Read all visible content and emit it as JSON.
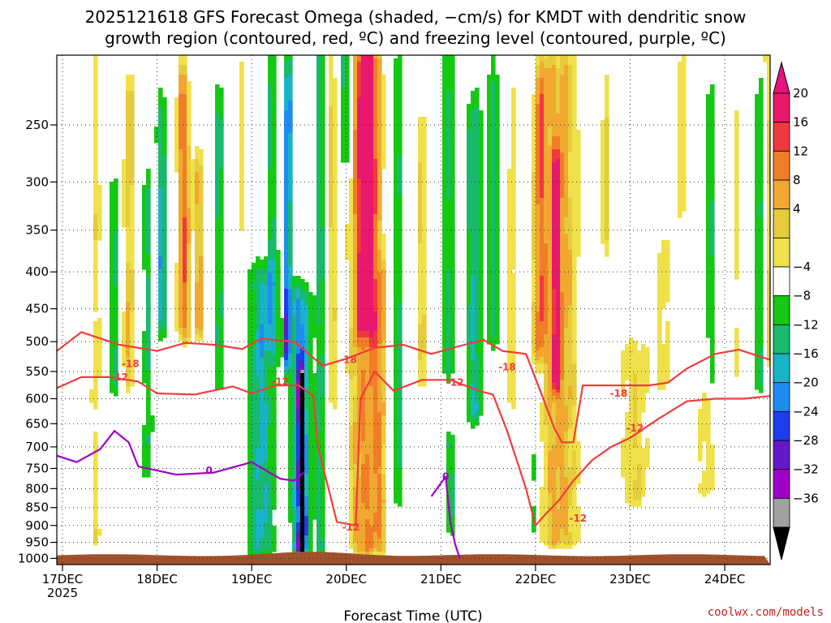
{
  "chart_data": {
    "type": "heatmap",
    "title_line1": "2025121618 GFS Forecast Omega (shaded, −cm/s) for KMDT with dendritic snow",
    "title_line2": "growth region (contoured, red, ºC) and freezing level (contoured, purple, ºC)",
    "xlabel": "Forecast Time (UTC)",
    "ylabel": "",
    "x_ticks": [
      {
        "label": "17DEC",
        "sub": "2025",
        "t": 0
      },
      {
        "label": "18DEC",
        "t": 1
      },
      {
        "label": "19DEC",
        "t": 2
      },
      {
        "label": "20DEC",
        "t": 3
      },
      {
        "label": "21DEC",
        "t": 4
      },
      {
        "label": "22DEC",
        "t": 5
      },
      {
        "label": "23DEC",
        "t": 6
      },
      {
        "label": "24DEC",
        "t": 7
      }
    ],
    "xlim_days": [
      -0.06,
      7.48
    ],
    "y_ticks": [
      250,
      300,
      350,
      400,
      450,
      500,
      550,
      600,
      650,
      700,
      750,
      800,
      850,
      900,
      950,
      1000
    ],
    "ylim_hPa": [
      200,
      1020
    ],
    "grid": true,
    "colorbar": {
      "labels": [
        "20",
        "16",
        "12",
        "8",
        "4",
        "−4",
        "−8",
        "−12",
        "−16",
        "−20",
        "−24",
        "−28",
        "−32",
        "−36"
      ],
      "top_arrow_color": "#e8127a",
      "bottom_arrow_color": "#000000",
      "colors": [
        "#e8186e",
        "#f0393c",
        "#f07e28",
        "#f0a830",
        "#e6cc3c",
        "#f0e14a",
        "#ffffff",
        "#14c814",
        "#19b96e",
        "#19b4c8",
        "#1e8cf0",
        "#1e3cf0",
        "#6419c8",
        "#a000c8",
        "#a0a0a0"
      ]
    },
    "omega_features": [
      {
        "t": 0.35,
        "p0": 220,
        "p1": 940,
        "w": 0.07,
        "v": 5
      },
      {
        "t": 0.7,
        "p0": 240,
        "p1": 560,
        "w": 0.06,
        "v": 8
      },
      {
        "t": 0.55,
        "p0": 320,
        "p1": 560,
        "w": 0.05,
        "v": -9
      },
      {
        "t": 0.9,
        "p0": 320,
        "p1": 750,
        "w": 0.05,
        "v": -8
      },
      {
        "t": 1.05,
        "p0": 260,
        "p1": 460,
        "w": 0.05,
        "v": -14
      },
      {
        "t": 1.28,
        "p0": 240,
        "p1": 470,
        "w": 0.07,
        "v": 14
      },
      {
        "t": 1.45,
        "p0": 300,
        "p1": 470,
        "w": 0.06,
        "v": 9
      },
      {
        "t": 1.65,
        "p0": 250,
        "p1": 560,
        "w": 0.05,
        "v": -9
      },
      {
        "t": 1.9,
        "p0": 220,
        "p1": 420,
        "w": 0.05,
        "v": 5
      },
      {
        "t": 2.1,
        "p0": 420,
        "p1": 960,
        "w": 0.14,
        "v": -13
      },
      {
        "t": 2.22,
        "p0": 230,
        "p1": 500,
        "w": 0.06,
        "v": -9
      },
      {
        "t": 2.38,
        "p0": 230,
        "p1": 520,
        "w": 0.04,
        "v": -22
      },
      {
        "t": 2.53,
        "p0": 590,
        "p1": 960,
        "w": 0.03,
        "v": -38
      },
      {
        "t": 2.52,
        "p0": 450,
        "p1": 960,
        "w": 0.09,
        "v": -20
      },
      {
        "t": 2.72,
        "p0": 200,
        "p1": 960,
        "w": 0.05,
        "v": -10
      },
      {
        "t": 2.85,
        "p0": 220,
        "p1": 600,
        "w": 0.05,
        "v": 6
      },
      {
        "t": 3.0,
        "p0": 200,
        "p1": 260,
        "w": 0.06,
        "v": -12
      },
      {
        "t": 3.22,
        "p0": 220,
        "p1": 460,
        "w": 0.09,
        "v": 22
      },
      {
        "t": 3.2,
        "p0": 200,
        "p1": 960,
        "w": 0.17,
        "v": 12
      },
      {
        "t": 3.35,
        "p0": 420,
        "p1": 950,
        "w": 0.06,
        "v": 7
      },
      {
        "t": 3.55,
        "p0": 220,
        "p1": 820,
        "w": 0.05,
        "v": -9
      },
      {
        "t": 3.8,
        "p0": 260,
        "p1": 560,
        "w": 0.06,
        "v": 6
      },
      {
        "t": 4.08,
        "p0": 200,
        "p1": 540,
        "w": 0.06,
        "v": -9
      },
      {
        "t": 4.35,
        "p0": 260,
        "p1": 620,
        "w": 0.08,
        "v": -12
      },
      {
        "t": 4.55,
        "p0": 230,
        "p1": 480,
        "w": 0.06,
        "v": -9
      },
      {
        "t": 4.1,
        "p0": 700,
        "p1": 900,
        "w": 0.04,
        "v": -10
      },
      {
        "t": 4.75,
        "p0": 240,
        "p1": 600,
        "w": 0.05,
        "v": 6
      },
      {
        "t": 5.05,
        "p0": 240,
        "p1": 500,
        "w": 0.07,
        "v": 11
      },
      {
        "t": 5.25,
        "p0": 220,
        "p1": 940,
        "w": 0.22,
        "v": 9
      },
      {
        "t": 5.22,
        "p0": 300,
        "p1": 560,
        "w": 0.05,
        "v": 18
      },
      {
        "t": 5.0,
        "p0": 730,
        "p1": 900,
        "w": 0.04,
        "v": -9
      },
      {
        "t": 5.75,
        "p0": 230,
        "p1": 360,
        "w": 0.06,
        "v": 6
      },
      {
        "t": 6.05,
        "p0": 520,
        "p1": 820,
        "w": 0.18,
        "v": 6
      },
      {
        "t": 6.35,
        "p0": 380,
        "p1": 560,
        "w": 0.1,
        "v": 5
      },
      {
        "t": 6.55,
        "p0": 220,
        "p1": 320,
        "w": 0.06,
        "v": 6
      },
      {
        "t": 6.8,
        "p0": 520,
        "p1": 800,
        "w": 0.12,
        "v": 5
      },
      {
        "t": 6.85,
        "p0": 250,
        "p1": 560,
        "w": 0.05,
        "v": -9
      },
      {
        "t": 7.12,
        "p0": 250,
        "p1": 540,
        "w": 0.06,
        "v": 5
      },
      {
        "t": 7.38,
        "p0": 240,
        "p1": 560,
        "w": 0.06,
        "v": -9
      },
      {
        "t": 7.45,
        "p0": 200,
        "p1": 520,
        "w": 0.05,
        "v": 8
      }
    ],
    "contours": [
      {
        "color": "#f03c3c",
        "labels_c": [
          "-18"
        ],
        "points": [
          [
            -0.06,
            515
          ],
          [
            0.2,
            485
          ],
          [
            0.6,
            505
          ],
          [
            1.0,
            515
          ],
          [
            1.3,
            502
          ],
          [
            1.6,
            505
          ],
          [
            1.9,
            512
          ],
          [
            2.1,
            495
          ],
          [
            2.45,
            500
          ],
          [
            2.75,
            540
          ],
          [
            3.0,
            528
          ],
          [
            3.3,
            510
          ],
          [
            3.6,
            505
          ],
          [
            3.9,
            520
          ],
          [
            4.2,
            507
          ],
          [
            4.45,
            497
          ],
          [
            4.65,
            515
          ],
          [
            4.9,
            520
          ],
          [
            5.05,
            585
          ],
          [
            5.2,
            660
          ],
          [
            5.28,
            690
          ],
          [
            5.4,
            690
          ],
          [
            5.5,
            575
          ],
          [
            6.2,
            575
          ],
          [
            6.4,
            570
          ],
          [
            6.6,
            545
          ],
          [
            6.9,
            520
          ],
          [
            7.15,
            513
          ],
          [
            7.48,
            530
          ]
        ],
        "label_pos": [
          [
            0.72,
            537
          ],
          [
            3.02,
            530
          ],
          [
            4.7,
            542
          ],
          [
            5.88,
            590
          ]
        ]
      },
      {
        "color": "#f03c3c",
        "labels_c": [
          "-12"
        ],
        "points": [
          [
            -0.06,
            580
          ],
          [
            0.2,
            560
          ],
          [
            0.5,
            560
          ],
          [
            0.8,
            568
          ],
          [
            1.0,
            590
          ],
          [
            1.4,
            592
          ],
          [
            1.8,
            577
          ],
          [
            2.0,
            590
          ],
          [
            2.25,
            575
          ],
          [
            2.5,
            575
          ],
          [
            2.65,
            595
          ],
          [
            2.7,
            700
          ],
          [
            2.9,
            890
          ],
          [
            3.1,
            900
          ],
          [
            3.15,
            600
          ],
          [
            3.3,
            550
          ],
          [
            3.5,
            585
          ],
          [
            3.8,
            565
          ],
          [
            4.1,
            565
          ],
          [
            4.4,
            585
          ],
          [
            4.55,
            592
          ],
          [
            4.7,
            665
          ],
          [
            4.9,
            800
          ],
          [
            5.0,
            900
          ],
          [
            5.1,
            870
          ],
          [
            5.25,
            830
          ],
          [
            5.4,
            780
          ],
          [
            5.6,
            730
          ],
          [
            5.8,
            700
          ],
          [
            6.0,
            680
          ],
          [
            6.3,
            640
          ],
          [
            6.6,
            605
          ],
          [
            6.9,
            600
          ],
          [
            7.2,
            600
          ],
          [
            7.48,
            595
          ]
        ],
        "label_pos": [
          [
            0.6,
            560
          ],
          [
            2.3,
            568
          ],
          [
            3.05,
            905
          ],
          [
            4.15,
            570
          ],
          [
            5.45,
            880
          ],
          [
            6.05,
            660
          ]
        ]
      },
      {
        "color": "#a000c8",
        "labels_c": [
          "0"
        ],
        "points": [
          [
            -0.06,
            720
          ],
          [
            0.15,
            735
          ],
          [
            0.4,
            705
          ],
          [
            0.55,
            665
          ],
          [
            0.7,
            690
          ],
          [
            0.8,
            745
          ],
          [
            1.2,
            765
          ],
          [
            1.6,
            760
          ],
          [
            2.0,
            735
          ],
          [
            2.3,
            775
          ],
          [
            2.45,
            780
          ],
          [
            2.55,
            760
          ]
        ],
        "label_pos": [
          [
            1.55,
            755
          ]
        ]
      },
      {
        "color": "#a000c8",
        "labels_c": [
          "0"
        ],
        "points": [
          [
            3.9,
            820
          ],
          [
            4.05,
            770
          ],
          [
            4.1,
            890
          ],
          [
            4.15,
            955
          ],
          [
            4.2,
            1000
          ]
        ],
        "label_pos": [
          [
            4.05,
            770
          ]
        ]
      }
    ]
  },
  "ui": {
    "credit": "coolwx.com/models"
  }
}
